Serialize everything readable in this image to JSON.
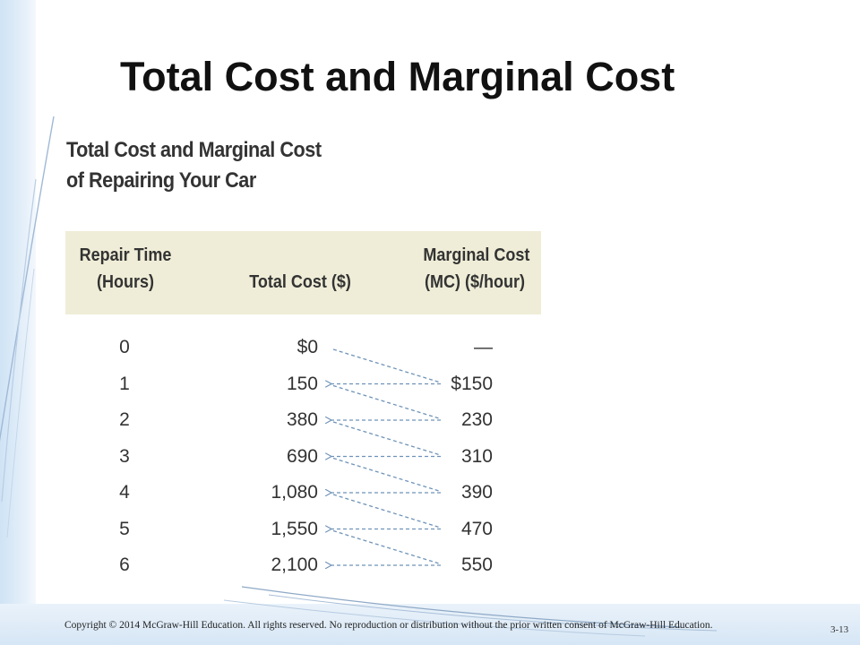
{
  "slide": {
    "title": "Total Cost and Marginal Cost",
    "footer": "Copyright © 2014 McGraw-Hill Education. All rights reserved. No reproduction or distribution without the prior written consent of McGraw-Hill Education.",
    "page_number": "3-13"
  },
  "figure": {
    "title_line1": "Total Cost and Marginal Cost",
    "title_line2": "of Repairing Your Car",
    "header_fill": "#efedd7",
    "arrow_color": "#6f93b8"
  },
  "chart_data": {
    "type": "table",
    "title": "Total Cost and Marginal Cost of Repairing Your Car",
    "columns": [
      {
        "line1": "Repair Time",
        "line2": "(Hours)"
      },
      {
        "line1": "",
        "line2": "Total Cost ($)"
      },
      {
        "line1": "Marginal Cost",
        "line2": "(MC) ($/hour)"
      }
    ],
    "rows": [
      {
        "hours": "0",
        "total_cost": "$0",
        "marginal_cost": "—"
      },
      {
        "hours": "1",
        "total_cost": "150",
        "marginal_cost": "$150"
      },
      {
        "hours": "2",
        "total_cost": "380",
        "marginal_cost": "230"
      },
      {
        "hours": "3",
        "total_cost": "690",
        "marginal_cost": "310"
      },
      {
        "hours": "4",
        "total_cost": "1,080",
        "marginal_cost": "390"
      },
      {
        "hours": "5",
        "total_cost": "1,550",
        "marginal_cost": "470"
      },
      {
        "hours": "6",
        "total_cost": "2,100",
        "marginal_cost": "550"
      }
    ],
    "values": {
      "hours": [
        0,
        1,
        2,
        3,
        4,
        5,
        6
      ],
      "total_cost": [
        0,
        150,
        380,
        690,
        1080,
        1550,
        2100
      ],
      "marginal_cost": [
        null,
        150,
        230,
        310,
        390,
        470,
        550
      ]
    }
  }
}
